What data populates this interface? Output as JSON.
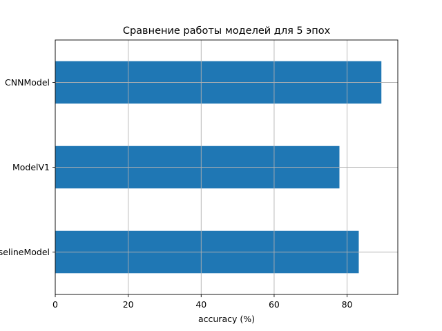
{
  "chart_data": {
    "type": "bar",
    "orientation": "horizontal",
    "title": "Сравнение работы моделей для 5 эпох",
    "xlabel": "accuracy (%)",
    "ylabel": "",
    "categories": [
      "BaselineModel",
      "ModelV1",
      "CNNModel"
    ],
    "values": [
      83.2,
      77.9,
      89.4
    ],
    "xlim": [
      0,
      93.9
    ],
    "xticks": [
      0,
      20,
      40,
      60,
      80
    ],
    "grid": true,
    "bar_color": "#1f77b4",
    "legend": "none"
  }
}
